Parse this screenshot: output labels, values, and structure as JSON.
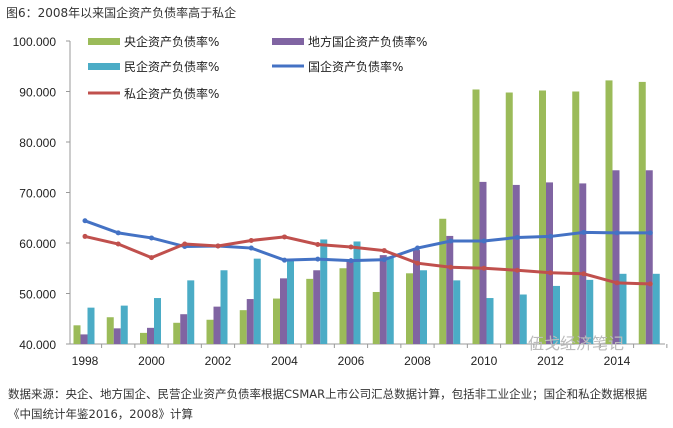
{
  "title": "图6：2008年以来国企资产负债率高于私企",
  "note": "数据来源：央企、地方国企、民营企业资产负债率根据CSMAR上市公司汇总数据计算，包括非工业企业；国企和私企数据根据《中国统计年鉴2016，2008》计算",
  "watermark": "伍戈经济笔记",
  "chart_data": {
    "type": "bar",
    "title": "图6：2008年以来国企资产负债率高于私企",
    "xlabel": "",
    "ylabel": "",
    "ylim": [
      40,
      100
    ],
    "yticks": [
      "40.000",
      "50.000",
      "60.000",
      "70.000",
      "80.000",
      "90.000",
      "100.000"
    ],
    "categories": [
      "1998",
      "1999",
      "2000",
      "2001",
      "2002",
      "2003",
      "2004",
      "2005",
      "2006",
      "2007",
      "2008",
      "2009",
      "2010",
      "2011",
      "2012",
      "2013",
      "2014",
      "2015"
    ],
    "xtick_labels": [
      "1998",
      "2000",
      "2002",
      "2004",
      "2006",
      "2008",
      "2010",
      "2012",
      "2014"
    ],
    "legend_placement": "top",
    "series": [
      {
        "name": "央企资产负债率%",
        "kind": "bar",
        "color": "#9bbb59",
        "values": [
          43.7,
          45.3,
          42.2,
          44.2,
          44.8,
          46.7,
          49.0,
          52.9,
          55.0,
          50.3,
          54.0,
          64.8,
          90.4,
          89.8,
          90.2,
          90.0,
          92.2,
          91.9
        ]
      },
      {
        "name": "地方国企资产负债率%",
        "kind": "bar",
        "color": "#8064a2",
        "values": [
          41.9,
          43.1,
          43.2,
          45.9,
          47.4,
          48.9,
          53.0,
          54.6,
          56.5,
          57.6,
          58.6,
          61.4,
          72.1,
          71.5,
          72.0,
          71.8,
          74.4,
          74.4
        ]
      },
      {
        "name": "民企资产负债率%",
        "kind": "bar",
        "color": "#4bacc6",
        "values": [
          47.2,
          47.6,
          49.1,
          52.6,
          54.6,
          56.9,
          56.5,
          60.7,
          60.3,
          57.3,
          54.6,
          52.6,
          49.1,
          49.8,
          51.5,
          52.7,
          53.9,
          53.9
        ]
      },
      {
        "name": "国企资产负债率%",
        "kind": "line",
        "color": "#4472c4",
        "values": [
          64.4,
          62.0,
          61.0,
          59.3,
          59.4,
          59.0,
          56.6,
          56.8,
          56.5,
          56.7,
          59.0,
          60.4,
          60.4,
          61.1,
          61.3,
          62.1,
          62.0,
          62.0
        ]
      },
      {
        "name": "私企资产负债率%",
        "kind": "line",
        "color": "#c0504d",
        "values": [
          61.3,
          59.8,
          57.1,
          59.8,
          59.4,
          60.5,
          61.2,
          59.7,
          59.2,
          58.5,
          56.0,
          55.2,
          55.0,
          54.6,
          54.1,
          53.9,
          52.1,
          51.9
        ]
      }
    ]
  }
}
